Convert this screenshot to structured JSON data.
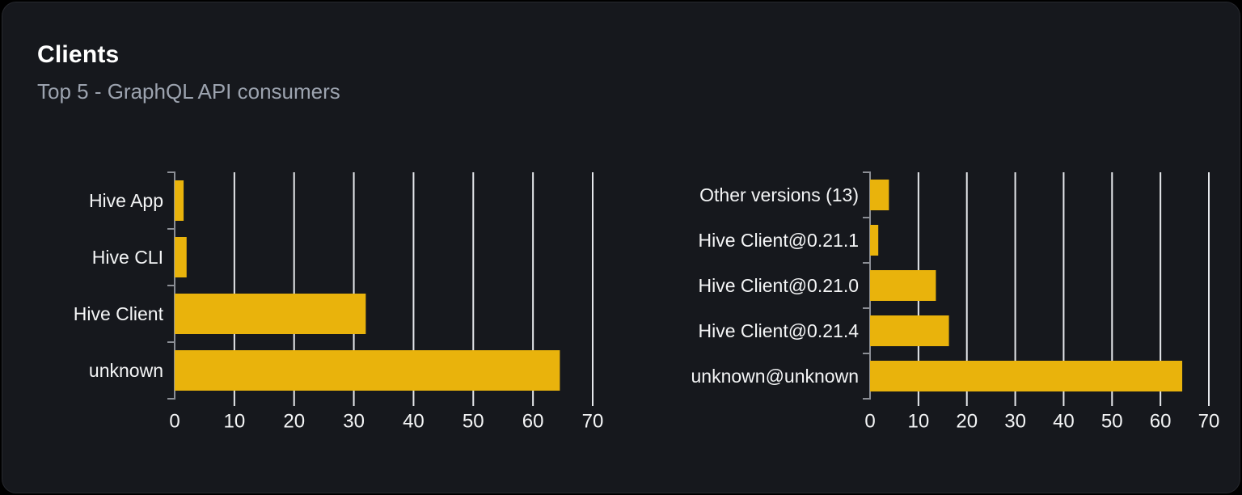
{
  "card": {
    "title": "Clients",
    "subtitle": "Top 5 - GraphQL API consumers"
  },
  "colors": {
    "page_background": "#000000",
    "card_background": "#16181d",
    "card_border": "#26282e",
    "title": "#ffffff",
    "subtitle": "#9ca3af",
    "bar": "#e9b30c",
    "gridline": "#e6e8ec",
    "axis": "#8b8e95",
    "tick_label": "#f4f5f6",
    "category_label": "#f4f5f6"
  },
  "chart_data": [
    {
      "name": "clients-by-name",
      "type": "bar",
      "orientation": "horizontal",
      "categories": [
        "Hive App",
        "Hive CLI",
        "Hive Client",
        "unknown"
      ],
      "values": [
        1.5,
        2,
        32,
        64.5
      ],
      "xticks": [
        0,
        10,
        20,
        30,
        40,
        50,
        60,
        70
      ],
      "xlim": [
        0,
        70
      ],
      "xlabel": "",
      "ylabel": "",
      "grid": true,
      "legend": false
    },
    {
      "name": "clients-by-version",
      "type": "bar",
      "orientation": "horizontal",
      "categories": [
        "Other versions (13)",
        "Hive Client@0.21.1",
        "Hive Client@0.21.0",
        "Hive Client@0.21.4",
        "unknown@unknown"
      ],
      "values": [
        3.9,
        1.7,
        13.6,
        16.3,
        64.5
      ],
      "xticks": [
        0,
        10,
        20,
        30,
        40,
        50,
        60,
        70
      ],
      "xlim": [
        0,
        70
      ],
      "xlabel": "",
      "ylabel": "",
      "grid": true,
      "legend": false
    }
  ]
}
